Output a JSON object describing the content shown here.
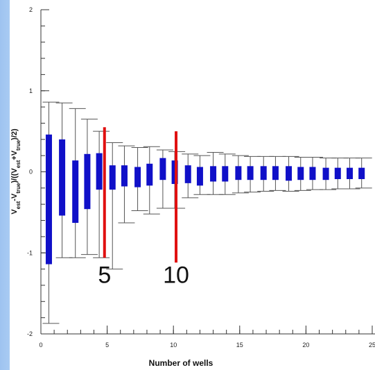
{
  "chart_data": {
    "type": "box",
    "xlabel": "Number of wells",
    "ylabel": "(Vest-Vtrue)/((Vest+Vtrue)/2)",
    "ylabel_parts": {
      "v1": "V",
      "s1": "est",
      "minus": "-V",
      "s2": "true",
      "mid": ")/((V",
      "s3": "est",
      "plus": "+V",
      "s4": "true",
      "end": ")/2)"
    },
    "xlim": [
      0,
      25
    ],
    "ylim": [
      -2,
      2
    ],
    "xticks": [
      0,
      5,
      10,
      15,
      20,
      25
    ],
    "xtick_labels": [
      "0",
      "5",
      "10",
      "15",
      "20",
      "25"
    ],
    "yticks": [
      -2,
      -1,
      0,
      1,
      2
    ],
    "ytick_labels": [
      "-2",
      "-1",
      "0",
      "1",
      "2"
    ],
    "box_color": "#1010c8",
    "whisker_color": "#555555",
    "marker_color": "#e01010",
    "boxes": [
      {
        "x": 0.6,
        "q1": -1.14,
        "q3": 0.46,
        "whisker_low": -1.87,
        "whisker_high": 0.86
      },
      {
        "x": 1.6,
        "q1": -0.54,
        "q3": 0.4,
        "whisker_low": -1.06,
        "whisker_high": 0.85
      },
      {
        "x": 2.6,
        "q1": -0.63,
        "q3": 0.14,
        "whisker_low": -1.06,
        "whisker_high": 0.78
      },
      {
        "x": 3.5,
        "q1": -0.46,
        "q3": 0.22,
        "whisker_low": -1.02,
        "whisker_high": 0.65
      },
      {
        "x": 4.4,
        "q1": -0.22,
        "q3": 0.23,
        "whisker_low": -1.06,
        "whisker_high": 0.5
      },
      {
        "x": 5.4,
        "q1": -0.22,
        "q3": 0.08,
        "whisker_low": -1.2,
        "whisker_high": 0.36
      },
      {
        "x": 6.3,
        "q1": -0.18,
        "q3": 0.08,
        "whisker_low": -0.63,
        "whisker_high": 0.32
      },
      {
        "x": 7.3,
        "q1": -0.19,
        "q3": 0.06,
        "whisker_low": -0.48,
        "whisker_high": 0.3
      },
      {
        "x": 8.2,
        "q1": -0.17,
        "q3": 0.1,
        "whisker_low": -0.52,
        "whisker_high": 0.31
      },
      {
        "x": 9.2,
        "q1": -0.1,
        "q3": 0.17,
        "whisker_low": -0.45,
        "whisker_high": 0.27
      },
      {
        "x": 10.1,
        "q1": -0.15,
        "q3": 0.14,
        "whisker_low": -0.45,
        "whisker_high": 0.25
      },
      {
        "x": 11.1,
        "q1": -0.14,
        "q3": 0.08,
        "whisker_low": -0.32,
        "whisker_high": 0.22
      },
      {
        "x": 12.0,
        "q1": -0.17,
        "q3": 0.06,
        "whisker_low": -0.28,
        "whisker_high": 0.2
      },
      {
        "x": 13.0,
        "q1": -0.12,
        "q3": 0.07,
        "whisker_low": -0.28,
        "whisker_high": 0.24
      },
      {
        "x": 13.9,
        "q1": -0.12,
        "q3": 0.07,
        "whisker_low": -0.28,
        "whisker_high": 0.22
      },
      {
        "x": 14.9,
        "q1": -0.1,
        "q3": 0.07,
        "whisker_low": -0.26,
        "whisker_high": 0.2
      },
      {
        "x": 15.8,
        "q1": -0.1,
        "q3": 0.07,
        "whisker_low": -0.25,
        "whisker_high": 0.19
      },
      {
        "x": 16.8,
        "q1": -0.1,
        "q3": 0.07,
        "whisker_low": -0.24,
        "whisker_high": 0.19
      },
      {
        "x": 17.7,
        "q1": -0.1,
        "q3": 0.07,
        "whisker_low": -0.23,
        "whisker_high": 0.19
      },
      {
        "x": 18.7,
        "q1": -0.11,
        "q3": 0.07,
        "whisker_low": -0.24,
        "whisker_high": 0.19
      },
      {
        "x": 19.6,
        "q1": -0.1,
        "q3": 0.06,
        "whisker_low": -0.23,
        "whisker_high": 0.18
      },
      {
        "x": 20.5,
        "q1": -0.1,
        "q3": 0.06,
        "whisker_low": -0.22,
        "whisker_high": 0.18
      },
      {
        "x": 21.5,
        "q1": -0.1,
        "q3": 0.05,
        "whisker_low": -0.22,
        "whisker_high": 0.17
      },
      {
        "x": 22.4,
        "q1": -0.09,
        "q3": 0.05,
        "whisker_low": -0.21,
        "whisker_high": 0.17
      },
      {
        "x": 23.3,
        "q1": -0.09,
        "q3": 0.05,
        "whisker_low": -0.21,
        "whisker_high": 0.17
      },
      {
        "x": 24.2,
        "q1": -0.09,
        "q3": 0.05,
        "whisker_low": -0.2,
        "whisker_high": 0.17
      }
    ],
    "markers": [
      {
        "x": 4.8,
        "y_low": -1.06,
        "y_high": 0.55,
        "label": "5"
      },
      {
        "x": 10.2,
        "y_low": -1.12,
        "y_high": 0.5,
        "label": "10"
      }
    ]
  }
}
